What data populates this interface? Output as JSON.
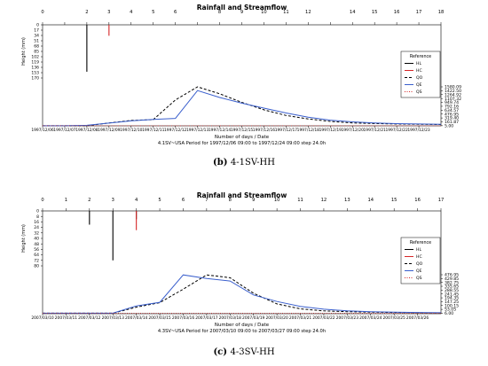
{
  "chart_data": [
    {
      "type": "line",
      "panel": "b",
      "title": "Rainfall and Streamflow",
      "caption_letter": "(b)",
      "caption_text": "4-1SV-HH",
      "xlabel": "Number of days / Date",
      "subtitle": "4.1SV~USA Period for 1997/12/06 09:00 to 1997/12/24 09:00 step 24.0h",
      "ylabel_left": "Height (mm)",
      "xlim": [
        0,
        18
      ],
      "top_ticks": [
        "0",
        "1",
        "2",
        "3",
        "4",
        "5",
        "6",
        "7",
        "8",
        "9",
        "10",
        "11",
        "12",
        "13",
        "14",
        "15",
        "16",
        "17",
        "18"
      ],
      "top_tick_labels_shown": [
        "0",
        "2",
        "3",
        "4",
        "5",
        "6",
        "8",
        "9",
        "10",
        "11",
        "12",
        "14",
        "15",
        "16",
        "17",
        "18"
      ],
      "rain_ticks": [
        "0",
        "17",
        "34",
        "51",
        "68",
        "85",
        "102",
        "119",
        "136",
        "153",
        "170"
      ],
      "rain_ylim": [
        0,
        170
      ],
      "flow_ticks": [
        "5.00",
        "161.87",
        "319.40",
        "476.95",
        "634.57",
        "792.16",
        "949.74",
        "1107.32",
        "1264.92",
        "1422.50",
        "1580.09"
      ],
      "flow_ylim": [
        0,
        1580.09
      ],
      "date_labels": [
        "1997/12/06",
        "1997/12/07",
        "1997/12/08",
        "1997/12/09",
        "1997/12/10",
        "1997/12/11",
        "1997/12/12",
        "1997/12/13",
        "1997/12/14",
        "1997/12/15",
        "1997/12/16",
        "1997/12/17",
        "1997/12/18",
        "1997/12/19",
        "1997/12/20",
        "1997/12/21",
        "1997/12/22",
        "1997/12/23"
      ],
      "legend_title": "Reference",
      "legend": [
        "HL",
        "HC",
        "QO",
        "QE",
        "QS"
      ],
      "rain_bars": [
        {
          "series": "HL",
          "x": 2,
          "value": 150
        },
        {
          "series": "HC",
          "x": 3,
          "value": 35
        }
      ],
      "series": [
        {
          "name": "QO",
          "x": [
            0,
            1,
            2,
            3,
            4,
            5,
            6,
            7,
            8,
            9,
            10,
            11,
            12,
            13,
            14,
            15,
            16,
            17,
            18
          ],
          "values": [
            5,
            5,
            5,
            120,
            220,
            250,
            1050,
            1580,
            1300,
            950,
            650,
            420,
            280,
            180,
            120,
            95,
            75,
            65,
            55
          ]
        },
        {
          "name": "QE",
          "x": [
            0,
            1,
            2,
            3,
            4,
            5,
            6,
            7,
            8,
            9,
            10,
            11,
            12,
            13,
            14,
            15,
            16,
            17,
            18
          ],
          "values": [
            5,
            5,
            20,
            110,
            200,
            260,
            300,
            1430,
            1150,
            920,
            720,
            520,
            350,
            230,
            160,
            120,
            90,
            75,
            65
          ]
        },
        {
          "name": "QS",
          "x": [
            0,
            18
          ],
          "values": [
            5,
            5
          ]
        }
      ]
    },
    {
      "type": "line",
      "panel": "c",
      "title": "Rainfall and Streamflow",
      "caption_letter": "(c)",
      "caption_text": "4-3SV-HH",
      "xlabel": "Number of days / Date",
      "subtitle": "4.3SV~USA Period for 2007/03/10 09:00 to 2007/03/27 09:00 step 24.0h",
      "ylabel_left": "Height (mm)",
      "xlim": [
        0,
        17
      ],
      "top_ticks": [
        "0",
        "1",
        "2",
        "3",
        "4",
        "5",
        "6",
        "7",
        "8",
        "9",
        "10",
        "11",
        "12",
        "13",
        "14",
        "15",
        "16",
        "17"
      ],
      "top_tick_labels_shown": [
        "0",
        "1",
        "2",
        "3",
        "4",
        "5",
        "6",
        "7",
        "8",
        "9",
        "10",
        "11",
        "12",
        "13",
        "14",
        "15",
        "16",
        "17"
      ],
      "rain_ticks": [
        "0",
        "8",
        "16",
        "24",
        "32",
        "40",
        "48",
        "56",
        "64",
        "72",
        "80"
      ],
      "rain_ylim": [
        0,
        80
      ],
      "flow_ticks": [
        "6.00",
        "53.05",
        "100.15",
        "147.25",
        "194.35",
        "241.45",
        "288.55",
        "335.65",
        "382.75",
        "429.85",
        "476.95"
      ],
      "flow_ylim": [
        0,
        476.95
      ],
      "date_labels": [
        "2007/03/10",
        "2007/03/11",
        "2007/03/12",
        "2007/03/13",
        "2007/03/14",
        "2007/03/15",
        "2007/03/16",
        "2007/03/17",
        "2007/03/18",
        "2007/03/19",
        "2007/03/20",
        "2007/03/21",
        "2007/03/22",
        "2007/03/23",
        "2007/03/24",
        "2007/03/25",
        "2007/03/26"
      ],
      "legend_title": "Reference",
      "legend": [
        "HL",
        "HC",
        "QO",
        "QE",
        "QS"
      ],
      "rain_bars": [
        {
          "series": "HL",
          "x": 2,
          "value": 20
        },
        {
          "series": "HL",
          "x": 3,
          "value": 72
        },
        {
          "series": "HL",
          "x": 4,
          "value": 12
        },
        {
          "series": "HC",
          "x": 4,
          "value": 28
        }
      ],
      "series": [
        {
          "name": "QO",
          "x": [
            0,
            1,
            2,
            3,
            4,
            5,
            6,
            7,
            8,
            9,
            10,
            11,
            12,
            13,
            14,
            15,
            16,
            17
          ],
          "values": [
            6,
            6,
            6,
            6,
            80,
            135,
            300,
            475,
            440,
            250,
            120,
            60,
            35,
            25,
            20,
            15,
            12,
            10
          ]
        },
        {
          "name": "QE",
          "x": [
            0,
            1,
            2,
            3,
            4,
            5,
            6,
            7,
            8,
            9,
            10,
            11,
            12,
            13,
            14,
            15,
            16,
            17
          ],
          "values": [
            6,
            6,
            6,
            6,
            95,
            140,
            475,
            430,
            400,
            230,
            150,
            90,
            55,
            35,
            25,
            20,
            15,
            12
          ]
        },
        {
          "name": "QS",
          "x": [
            0,
            17
          ],
          "values": [
            6,
            6
          ]
        }
      ]
    }
  ],
  "colors": {
    "HL": "#000000",
    "HC": "#d62728",
    "QO": "#000000",
    "QE": "#3a5fcd",
    "QS": "#d62728"
  }
}
